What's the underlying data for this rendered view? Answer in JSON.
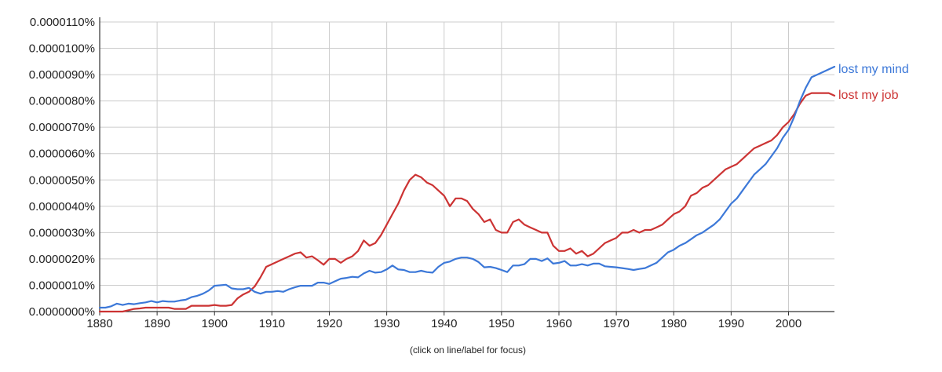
{
  "chart_data": {
    "type": "line",
    "xlim": [
      1880,
      2008
    ],
    "ylim": [
      0,
      1.1e-05
    ],
    "grid": true,
    "legend_placement": "right",
    "y_ticks": [
      0,
      1e-06,
      2e-06,
      3e-06,
      4e-06,
      5e-06,
      6e-06,
      7e-06,
      8e-06,
      9e-06,
      1e-05,
      1.1e-05
    ],
    "y_tick_labels": [
      "0.0000000%",
      "0.0000010%",
      "0.0000020%",
      "0.0000030%",
      "0.0000040%",
      "0.0000050%",
      "0.0000060%",
      "0.0000070%",
      "0.0000080%",
      "0.0000090%",
      "0.0000100%",
      "0.0000110%"
    ],
    "x_ticks": [
      1880,
      1890,
      1900,
      1910,
      1920,
      1930,
      1940,
      1950,
      1960,
      1970,
      1980,
      1990,
      2000
    ],
    "x_tick_labels": [
      "1880",
      "1890",
      "1900",
      "1910",
      "1920",
      "1930",
      "1940",
      "1950",
      "1960",
      "1970",
      "1980",
      "1990",
      "2000"
    ],
    "series": [
      {
        "name": "lost my mind",
        "color": "#3c78d8",
        "x": [
          1880,
          1881,
          1882,
          1883,
          1884,
          1885,
          1886,
          1887,
          1888,
          1889,
          1890,
          1891,
          1892,
          1893,
          1894,
          1895,
          1896,
          1897,
          1898,
          1899,
          1900,
          1901,
          1902,
          1903,
          1904,
          1905,
          1906,
          1907,
          1908,
          1909,
          1910,
          1911,
          1912,
          1913,
          1914,
          1915,
          1916,
          1917,
          1918,
          1919,
          1920,
          1921,
          1922,
          1923,
          1924,
          1925,
          1926,
          1927,
          1928,
          1929,
          1930,
          1931,
          1932,
          1933,
          1934,
          1935,
          1936,
          1937,
          1938,
          1939,
          1940,
          1941,
          1942,
          1943,
          1944,
          1945,
          1946,
          1947,
          1948,
          1949,
          1950,
          1951,
          1952,
          1953,
          1954,
          1955,
          1956,
          1957,
          1958,
          1959,
          1960,
          1961,
          1962,
          1963,
          1964,
          1965,
          1966,
          1967,
          1968,
          1969,
          1970,
          1971,
          1972,
          1973,
          1974,
          1975,
          1976,
          1977,
          1978,
          1979,
          1980,
          1981,
          1982,
          1983,
          1984,
          1985,
          1986,
          1987,
          1988,
          1989,
          1990,
          1991,
          1992,
          1993,
          1994,
          1995,
          1996,
          1997,
          1998,
          1999,
          2000,
          2001,
          2002,
          2003,
          2004,
          2005,
          2006,
          2007,
          2008
        ],
        "values": [
          1.5e-07,
          1.5e-07,
          2e-07,
          3e-07,
          2.5e-07,
          3e-07,
          2.8e-07,
          3.2e-07,
          3.5e-07,
          4e-07,
          3.5e-07,
          4e-07,
          3.8e-07,
          3.8e-07,
          4.2e-07,
          4.5e-07,
          5.5e-07,
          6e-07,
          6.8e-07,
          8e-07,
          9.8e-07,
          1e-06,
          1.02e-06,
          8.8e-07,
          8.5e-07,
          8.5e-07,
          9e-07,
          7.5e-07,
          6.8e-07,
          7.5e-07,
          7.5e-07,
          7.8e-07,
          7.5e-07,
          8.5e-07,
          9.2e-07,
          9.8e-07,
          9.8e-07,
          9.8e-07,
          1.1e-06,
          1.1e-06,
          1.05e-06,
          1.15e-06,
          1.25e-06,
          1.28e-06,
          1.32e-06,
          1.3e-06,
          1.45e-06,
          1.55e-06,
          1.48e-06,
          1.5e-06,
          1.6e-06,
          1.75e-06,
          1.6e-06,
          1.58e-06,
          1.5e-06,
          1.5e-06,
          1.55e-06,
          1.5e-06,
          1.48e-06,
          1.7e-06,
          1.85e-06,
          1.9e-06,
          2e-06,
          2.05e-06,
          2.05e-06,
          2e-06,
          1.88e-06,
          1.68e-06,
          1.7e-06,
          1.65e-06,
          1.58e-06,
          1.5e-06,
          1.75e-06,
          1.75e-06,
          1.8e-06,
          2e-06,
          2e-06,
          1.92e-06,
          2.02e-06,
          1.82e-06,
          1.85e-06,
          1.92e-06,
          1.75e-06,
          1.75e-06,
          1.8e-06,
          1.75e-06,
          1.82e-06,
          1.82e-06,
          1.72e-06,
          1.7e-06,
          1.68e-06,
          1.65e-06,
          1.62e-06,
          1.58e-06,
          1.62e-06,
          1.65e-06,
          1.75e-06,
          1.85e-06,
          2.05e-06,
          2.25e-06,
          2.35e-06,
          2.5e-06,
          2.6e-06,
          2.75e-06,
          2.9e-06,
          3e-06,
          3.15e-06,
          3.3e-06,
          3.5e-06,
          3.8e-06,
          4.1e-06,
          4.3e-06,
          4.6e-06,
          4.9e-06,
          5.2e-06,
          5.4e-06,
          5.6e-06,
          5.9e-06,
          6.2e-06,
          6.6e-06,
          6.9e-06,
          7.4e-06,
          8e-06,
          8.5e-06,
          8.9e-06,
          9e-06,
          9.1e-06,
          9.2e-06,
          9.3e-06
        ]
      },
      {
        "name": "lost my job",
        "color": "#cc3333",
        "x": [
          1880,
          1881,
          1882,
          1883,
          1884,
          1885,
          1886,
          1887,
          1888,
          1889,
          1890,
          1891,
          1892,
          1893,
          1894,
          1895,
          1896,
          1897,
          1898,
          1899,
          1900,
          1901,
          1902,
          1903,
          1904,
          1905,
          1906,
          1907,
          1908,
          1909,
          1910,
          1911,
          1912,
          1913,
          1914,
          1915,
          1916,
          1917,
          1918,
          1919,
          1920,
          1921,
          1922,
          1923,
          1924,
          1925,
          1926,
          1927,
          1928,
          1929,
          1930,
          1931,
          1932,
          1933,
          1934,
          1935,
          1936,
          1937,
          1938,
          1939,
          1940,
          1941,
          1942,
          1943,
          1944,
          1945,
          1946,
          1947,
          1948,
          1949,
          1950,
          1951,
          1952,
          1953,
          1954,
          1955,
          1956,
          1957,
          1958,
          1959,
          1960,
          1961,
          1962,
          1963,
          1964,
          1965,
          1966,
          1967,
          1968,
          1969,
          1970,
          1971,
          1972,
          1973,
          1974,
          1975,
          1976,
          1977,
          1978,
          1979,
          1980,
          1981,
          1982,
          1983,
          1984,
          1985,
          1986,
          1987,
          1988,
          1989,
          1990,
          1991,
          1992,
          1993,
          1994,
          1995,
          1996,
          1997,
          1998,
          1999,
          2000,
          2001,
          2002,
          2003,
          2004,
          2005,
          2006,
          2007,
          2008
        ],
        "values": [
          0,
          0,
          0,
          0,
          0,
          5e-08,
          1e-07,
          1.2e-07,
          1.5e-07,
          1.5e-07,
          1.5e-07,
          1.5e-07,
          1.5e-07,
          1e-07,
          1e-07,
          1e-07,
          2.2e-07,
          2.2e-07,
          2.2e-07,
          2.2e-07,
          2.5e-07,
          2.2e-07,
          2.2e-07,
          2.5e-07,
          5e-07,
          6.5e-07,
          7.5e-07,
          9.5e-07,
          1.3e-06,
          1.7e-06,
          1.8e-06,
          1.9e-06,
          2e-06,
          2.1e-06,
          2.2e-06,
          2.25e-06,
          2.05e-06,
          2.1e-06,
          1.95e-06,
          1.78e-06,
          2e-06,
          2e-06,
          1.85e-06,
          2e-06,
          2.1e-06,
          2.3e-06,
          2.7e-06,
          2.5e-06,
          2.6e-06,
          2.9e-06,
          3.3e-06,
          3.7e-06,
          4.1e-06,
          4.6e-06,
          5e-06,
          5.2e-06,
          5.1e-06,
          4.9e-06,
          4.8e-06,
          4.6e-06,
          4.4e-06,
          4e-06,
          4.3e-06,
          4.3e-06,
          4.2e-06,
          3.9e-06,
          3.7e-06,
          3.4e-06,
          3.5e-06,
          3.1e-06,
          3e-06,
          3e-06,
          3.4e-06,
          3.5e-06,
          3.3e-06,
          3.2e-06,
          3.1e-06,
          3e-06,
          3e-06,
          2.5e-06,
          2.3e-06,
          2.3e-06,
          2.4e-06,
          2.2e-06,
          2.3e-06,
          2.1e-06,
          2.2e-06,
          2.4e-06,
          2.6e-06,
          2.7e-06,
          2.8e-06,
          3e-06,
          3e-06,
          3.1e-06,
          3e-06,
          3.1e-06,
          3.1e-06,
          3.2e-06,
          3.3e-06,
          3.5e-06,
          3.7e-06,
          3.8e-06,
          4e-06,
          4.4e-06,
          4.5e-06,
          4.7e-06,
          4.8e-06,
          5e-06,
          5.2e-06,
          5.4e-06,
          5.5e-06,
          5.6e-06,
          5.8e-06,
          6e-06,
          6.2e-06,
          6.3e-06,
          6.4e-06,
          6.5e-06,
          6.7e-06,
          7e-06,
          7.2e-06,
          7.5e-06,
          7.9e-06,
          8.2e-06,
          8.3e-06,
          8.3e-06,
          8.3e-06,
          8.3e-06,
          8.2e-06
        ]
      }
    ]
  },
  "footnote": "(click on line/label for focus)"
}
